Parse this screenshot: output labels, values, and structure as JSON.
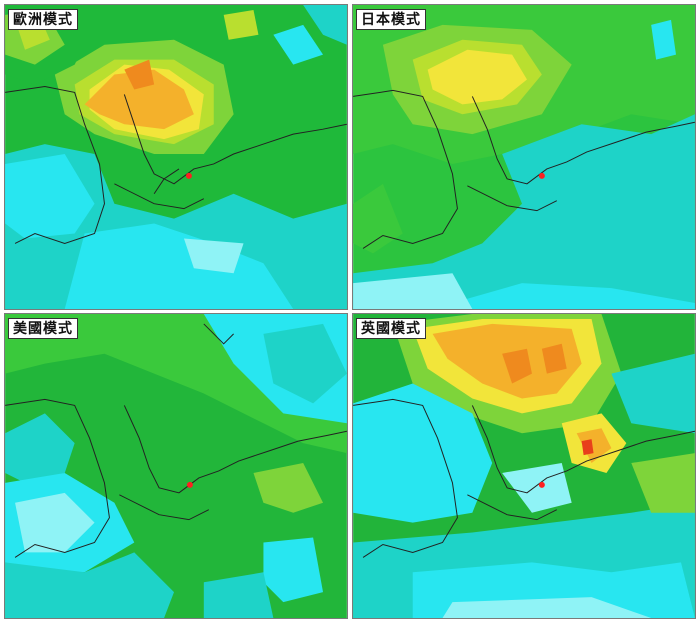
{
  "panels": [
    {
      "id": "ecmwf",
      "label": "歐洲模式",
      "color_base": "#1fb93a"
    },
    {
      "id": "jma",
      "label": "日本模式",
      "color_base": "#2cc43f"
    },
    {
      "id": "gfs",
      "label": "美國模式",
      "color_base": "#22b63a"
    },
    {
      "id": "ukmo",
      "label": "英國模式",
      "color_base": "#22b43a"
    }
  ],
  "palette": {
    "dark_green": "#1aa832",
    "green": "#3ac93c",
    "light_green": "#7ed43a",
    "yellow_green": "#b9df2f",
    "yellow": "#f2e53a",
    "orange": "#f4b12b",
    "dark_orange": "#ef8a1e",
    "red": "#e8401b",
    "teal": "#1ed3c8",
    "cyan": "#28e6f0",
    "light_cyan": "#8ff3f6",
    "coast": "#222222",
    "marker": "#ff2020"
  }
}
